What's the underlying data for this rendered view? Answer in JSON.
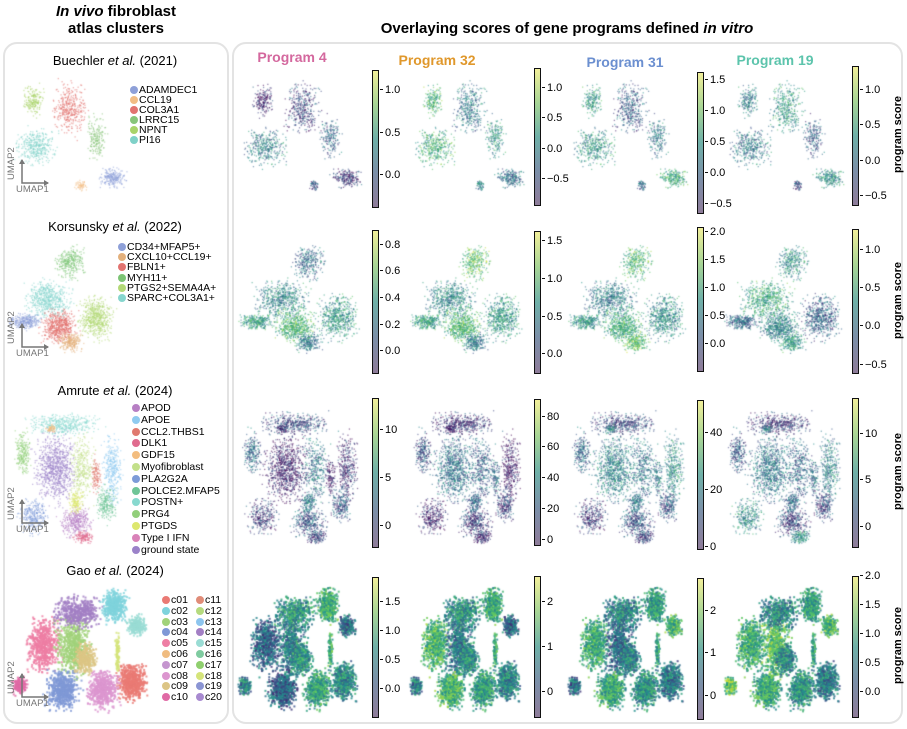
{
  "header": {
    "left_title_italic": "In vivo",
    "left_title_rest": " fibroblast",
    "left_title_line2": "atlas clusters",
    "right_title_prefix": "Overlaying scores of gene programs defined ",
    "right_title_italic": "in vitro"
  },
  "axis_labels": {
    "umap1": "UMAP1",
    "umap2": "UMAP2"
  },
  "colorbar_label": "program score",
  "programs": [
    {
      "label": "Program 4",
      "color": "#d4689e"
    },
    {
      "label": "Program 32",
      "color": "#e0982c"
    },
    {
      "label": "Program 31",
      "color": "#6b8fd0"
    },
    {
      "label": "Program 19",
      "color": "#5cc4ac"
    }
  ],
  "colormap": "viridis",
  "chart_data": {
    "type": "scatter",
    "rows": [
      {
        "author": "Buechler",
        "etal": "et al.",
        "year": "(2021)",
        "legend": [
          {
            "label": "ADAMDEC1",
            "color": "#8ea0d8"
          },
          {
            "label": "CCL19",
            "color": "#f2bd85"
          },
          {
            "label": "COL3A1",
            "color": "#e27370"
          },
          {
            "label": "LRRC15",
            "color": "#88c57a"
          },
          {
            "label": "NPNT",
            "color": "#a9d36a"
          },
          {
            "label": "PI16",
            "color": "#7fd1c8"
          }
        ],
        "colorbars": [
          {
            "range": [
              -0.35,
              1.25
            ],
            "ticks": [
              "1.0",
              "0.5",
              "0.0"
            ],
            "values": [
              1.0,
              0.5,
              0.0
            ]
          },
          {
            "range": [
              -0.9,
              1.35
            ],
            "ticks": [
              "1.0",
              "0.5",
              "0.0",
              "−0.5"
            ],
            "values": [
              1.0,
              0.5,
              0.0,
              -0.5
            ]
          },
          {
            "range": [
              -0.62,
              1.65
            ],
            "ticks": [
              "1.5",
              "1.0",
              "0.5",
              "0.0",
              "−0.5"
            ],
            "values": [
              1.5,
              1.0,
              0.5,
              0.0,
              -0.5
            ]
          },
          {
            "range": [
              -0.6,
              1.35
            ],
            "ticks": [
              "1.0",
              "0.5",
              "0.0",
              "−0.5"
            ],
            "values": [
              1.0,
              0.5,
              0.0,
              -0.5
            ]
          }
        ]
      },
      {
        "author": "Korsunsky",
        "etal": "et al.",
        "year": "(2022)",
        "legend": [
          {
            "label": "CD34+MFAP5+",
            "color": "#8ea0d8"
          },
          {
            "label": "CXCL10+CCL19+",
            "color": "#e3b07c"
          },
          {
            "label": "FBLN1+",
            "color": "#e27370"
          },
          {
            "label": "MYH11+",
            "color": "#7cc474"
          },
          {
            "label": "PTGS2+SEMA4A+",
            "color": "#b3d977"
          },
          {
            "label": "SPARC+COL3A1+",
            "color": "#86d6ce"
          }
        ],
        "colorbars": [
          {
            "range": [
              -0.15,
              0.92
            ],
            "ticks": [
              "0.8",
              "0.6",
              "0.4",
              "0.2",
              "0.0"
            ],
            "values": [
              0.8,
              0.6,
              0.4,
              0.2,
              0.0
            ]
          },
          {
            "range": [
              -0.22,
              1.65
            ],
            "ticks": [
              "1.5",
              "1.0",
              "0.5",
              "0.0"
            ],
            "values": [
              1.5,
              1.0,
              0.5,
              0.0
            ]
          },
          {
            "range": [
              -0.45,
              2.1
            ],
            "ticks": [
              "2.0",
              "1.5",
              "1.0",
              "0.5",
              "0.0"
            ],
            "values": [
              2.0,
              1.5,
              1.0,
              0.5,
              0.0
            ]
          },
          {
            "range": [
              -0.58,
              1.28
            ],
            "ticks": [
              "1.0",
              "0.5",
              "0.0",
              "−0.5"
            ],
            "values": [
              1.0,
              0.5,
              0.0,
              -0.5
            ]
          }
        ]
      },
      {
        "author": "Amrute",
        "etal": "et al.",
        "year": "(2024)",
        "legend": [
          {
            "label": "APOD",
            "color": "#b77fc4"
          },
          {
            "label": "APOE",
            "color": "#8fcbf0"
          },
          {
            "label": "CCL2.THBS1",
            "color": "#e07a6f"
          },
          {
            "label": "DLK1",
            "color": "#e06b8e"
          },
          {
            "label": "GDF15",
            "color": "#f3bd7f"
          },
          {
            "label": "Myofibroblast",
            "color": "#c3e08a"
          },
          {
            "label": "PLA2G2A",
            "color": "#7d9bd8"
          },
          {
            "label": "POLCE2.MFAP5",
            "color": "#6fc597"
          },
          {
            "label": "POSTN+",
            "color": "#88d9cf"
          },
          {
            "label": "PRG4",
            "color": "#92cf7a"
          },
          {
            "label": "PTGDS",
            "color": "#dde76e"
          },
          {
            "label": "Type I IFN",
            "color": "#d982b8"
          },
          {
            "label": "ground state",
            "color": "#9b82c9"
          }
        ],
        "colorbars": [
          {
            "range": [
              -2,
              13.5
            ],
            "ticks": [
              "10",
              "5",
              "0"
            ],
            "values": [
              10,
              5,
              0
            ]
          },
          {
            "range": [
              -2,
              92
            ],
            "ticks": [
              "80",
              "60",
              "40",
              "20",
              "0"
            ],
            "values": [
              80,
              60,
              40,
              20,
              0
            ]
          },
          {
            "range": [
              0,
              52
            ],
            "ticks": [
              "40",
              "20",
              "0"
            ],
            "values": [
              40,
              20,
              0
            ]
          },
          {
            "range": [
              -2,
              14
            ],
            "ticks": [
              "10",
              "5",
              "0"
            ],
            "values": [
              10,
              5,
              0
            ]
          }
        ]
      },
      {
        "author": "Gao",
        "etal": "et al.",
        "year": "(2024)",
        "legend": [
          {
            "label": "c01",
            "color": "#ea7a74"
          },
          {
            "label": "c02",
            "color": "#7fd3dc"
          },
          {
            "label": "c03",
            "color": "#a1d27a"
          },
          {
            "label": "c04",
            "color": "#7f98d6"
          },
          {
            "label": "c05",
            "color": "#ee7ea4"
          },
          {
            "label": "c06",
            "color": "#f0bc80"
          },
          {
            "label": "c07",
            "color": "#c596cf"
          },
          {
            "label": "c08",
            "color": "#dc96cf"
          },
          {
            "label": "c09",
            "color": "#dcc585"
          },
          {
            "label": "c10",
            "color": "#e06aa5"
          },
          {
            "label": "c11",
            "color": "#e08c78"
          },
          {
            "label": "c12",
            "color": "#b5da7e"
          },
          {
            "label": "c13",
            "color": "#8dc5ee"
          },
          {
            "label": "c14",
            "color": "#a37fc4"
          },
          {
            "label": "c15",
            "color": "#9adcd4"
          },
          {
            "label": "c16",
            "color": "#7fcba0"
          },
          {
            "label": "c17",
            "color": "#8fcf6e"
          },
          {
            "label": "c18",
            "color": "#d5e47a"
          },
          {
            "label": "c19",
            "color": "#8b95d4"
          },
          {
            "label": "c20",
            "color": "#a88ad0"
          }
        ],
        "colorbars": [
          {
            "range": [
              -0.45,
              1.95
            ],
            "ticks": [
              "1.5",
              "1.0",
              "0.5",
              "0.0"
            ],
            "values": [
              1.5,
              1.0,
              0.5,
              0.0
            ]
          },
          {
            "range": [
              -0.5,
              2.6
            ],
            "ticks": [
              "2",
              "1",
              "0"
            ],
            "values": [
              2,
              1,
              0
            ]
          },
          {
            "range": [
              -0.5,
              2.8
            ],
            "ticks": [
              "2",
              "1",
              "0"
            ],
            "values": [
              2,
              1,
              0
            ]
          },
          {
            "range": [
              -0.4,
              2.02
            ],
            "ticks": [
              "2.0",
              "1.5",
              "1.0",
              "0.5",
              "0.0"
            ],
            "values": [
              2.0,
              1.5,
              1.0,
              0.5,
              0.0
            ]
          }
        ]
      }
    ]
  }
}
